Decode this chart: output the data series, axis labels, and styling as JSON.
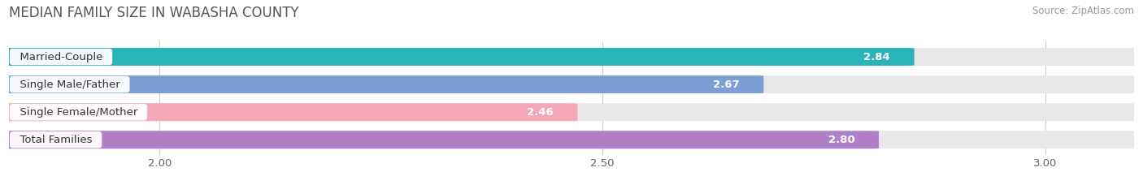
{
  "title": "MEDIAN FAMILY SIZE IN WABASHA COUNTY",
  "source": "Source: ZipAtlas.com",
  "categories": [
    "Married-Couple",
    "Single Male/Father",
    "Single Female/Mother",
    "Total Families"
  ],
  "values": [
    2.84,
    2.67,
    2.46,
    2.8
  ],
  "bar_colors": [
    "#2ab3b8",
    "#7b9fd4",
    "#f4a7b9",
    "#b07fc7"
  ],
  "bar_bg_color": "#e8e8e8",
  "xlim_left": 1.83,
  "xlim_right": 3.1,
  "xticks": [
    2.0,
    2.5,
    3.0
  ],
  "xtick_labels": [
    "2.00",
    "2.50",
    "3.00"
  ],
  "bar_height": 0.62,
  "bar_gap": 0.18,
  "label_fontsize": 9.5,
  "value_fontsize": 9.5,
  "title_fontsize": 12,
  "source_fontsize": 8.5,
  "label_box_color": "#ffffff",
  "label_text_color": "#333333",
  "value_text_color": "#ffffff",
  "grid_color": "#cccccc",
  "background_color": "#ffffff"
}
